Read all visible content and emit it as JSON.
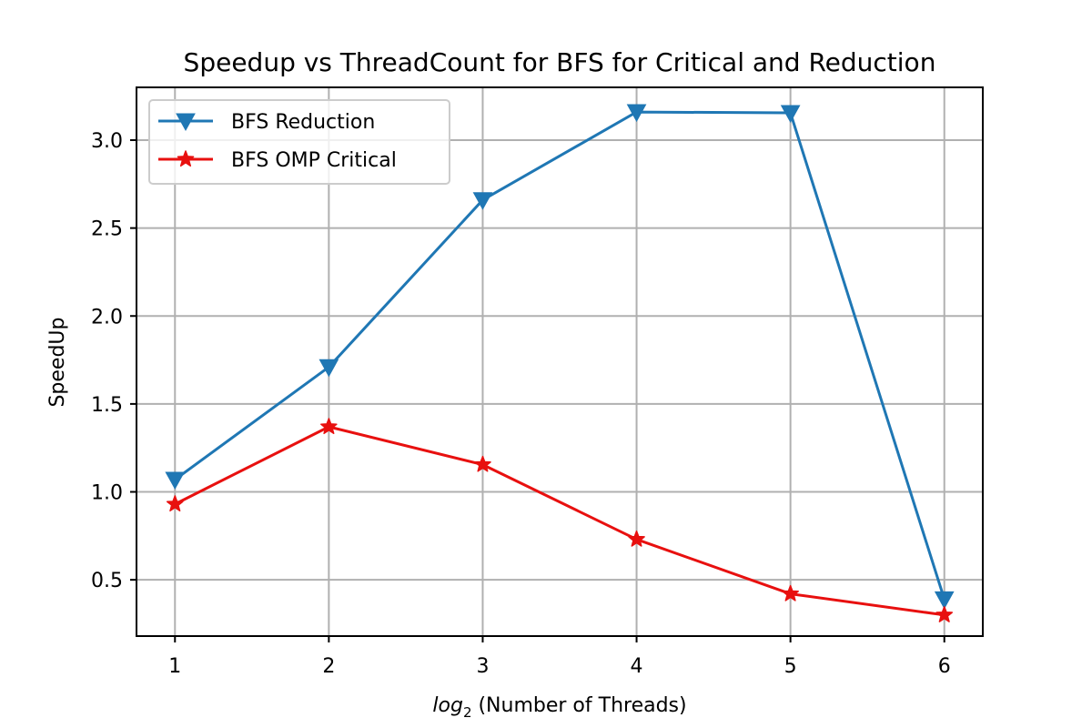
{
  "chart_data": {
    "type": "line",
    "title": "Speedup vs ThreadCount for BFS for Critical and Reduction",
    "xlabel_italic": "log",
    "xlabel_sub": "2",
    "xlabel_rest": " (Number of Threads)",
    "ylabel": "SpeedUp",
    "x": [
      1,
      2,
      3,
      4,
      5,
      6
    ],
    "xlim": [
      0.75,
      6.25
    ],
    "ylim": [
      0.18,
      3.3
    ],
    "xticks": [
      1,
      2,
      3,
      4,
      5,
      6
    ],
    "yticks": [
      0.5,
      1.0,
      1.5,
      2.0,
      2.5,
      3.0
    ],
    "ytick_labels": [
      "0.5",
      "1.0",
      "1.5",
      "2.0",
      "2.5",
      "3.0"
    ],
    "grid": true,
    "legend_position": "top-left",
    "series": [
      {
        "name": "BFS Reduction",
        "values": [
          1.07,
          1.71,
          2.66,
          3.16,
          3.155,
          0.39
        ],
        "color": "#1f77b4",
        "marker": "triangle-down"
      },
      {
        "name": "BFS OMP Critical",
        "values": [
          0.93,
          1.37,
          1.155,
          0.73,
          0.42,
          0.3
        ],
        "color": "#e8100f",
        "marker": "star"
      }
    ]
  }
}
